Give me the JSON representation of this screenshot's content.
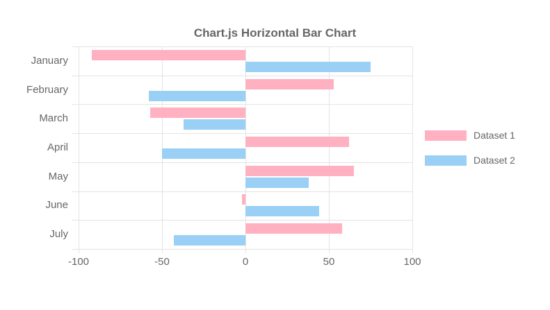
{
  "chart_title": "Chart.js Horizontal Bar Chart",
  "chart_data": {
    "type": "bar",
    "orientation": "horizontal",
    "title": "Chart.js Horizontal Bar Chart",
    "categories": [
      "January",
      "February",
      "March",
      "April",
      "May",
      "June",
      "July"
    ],
    "series": [
      {
        "name": "Dataset 1",
        "color": "#ffb1c1",
        "values": [
          -92,
          53,
          -57,
          62,
          65,
          -2,
          58
        ]
      },
      {
        "name": "Dataset 2",
        "color": "#9ad0f5",
        "values": [
          75,
          -58,
          -37,
          -50,
          38,
          44,
          -43
        ]
      }
    ],
    "xlim": [
      -100,
      100
    ],
    "x_ticks": [
      -100,
      -50,
      0,
      50,
      100
    ],
    "grid": true,
    "legend_position": "right"
  },
  "colors": {
    "text": "#666666",
    "grid": "#e3e3e3",
    "dataset1_fill": "#ffb1c1",
    "dataset2_fill": "#9ad0f5"
  }
}
